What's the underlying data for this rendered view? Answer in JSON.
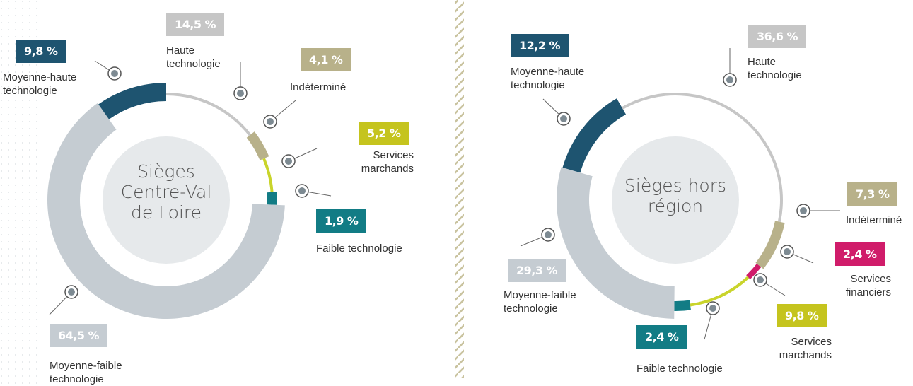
{
  "chart_data": [
    {
      "type": "pie",
      "title": "Sièges Centre-Val de Loire",
      "categories": [
        "Haute technologie",
        "Indéterminé",
        "Services marchands",
        "Faible technologie",
        "Moyenne-faible technologie",
        "Moyenne-haute technologie"
      ],
      "values": [
        14.5,
        4.1,
        5.2,
        1.9,
        64.5,
        9.8
      ],
      "value_labels": [
        "14,5 %",
        "4,1 %",
        "5,2 %",
        "1,9 %",
        "64,5 %",
        "9,8 %"
      ],
      "colors": [
        "#c6c6c6",
        "#b8b18a",
        "#c9d42b",
        "#127c85",
        "#c5ccd2",
        "#1e5470"
      ]
    },
    {
      "type": "pie",
      "title": "Sièges hors région",
      "categories": [
        "Haute technologie",
        "Indéterminé",
        "Services financiers",
        "Services marchands",
        "Faible technologie",
        "Moyenne-faible technologie",
        "Moyenne-haute technologie"
      ],
      "values": [
        36.6,
        7.3,
        2.4,
        9.8,
        2.4,
        29.3,
        12.2
      ],
      "value_labels": [
        "36,6 %",
        "7,3 %",
        "2,4 %",
        "9,8 %",
        "2,4 %",
        "29,3 %",
        "12,2 %"
      ],
      "colors": [
        "#c6c6c6",
        "#b8b18a",
        "#d01c6a",
        "#c9d42b",
        "#127c85",
        "#c5ccd2",
        "#1e5470"
      ]
    }
  ]
}
